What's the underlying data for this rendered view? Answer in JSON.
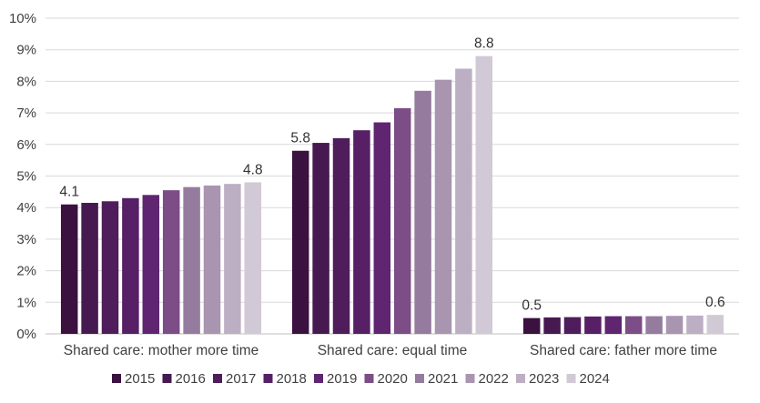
{
  "chart_data": {
    "type": "bar",
    "title": "",
    "xlabel": "",
    "ylabel": "",
    "categories": [
      "Shared care: mother more time",
      "Shared care: equal time",
      "Shared care: father more time"
    ],
    "ylim": [
      0,
      10
    ],
    "yticks": [
      0,
      1,
      2,
      3,
      4,
      5,
      6,
      7,
      8,
      9,
      10
    ],
    "ytick_labels": [
      "0%",
      "1%",
      "2%",
      "3%",
      "4%",
      "5%",
      "6%",
      "7%",
      "8%",
      "9%",
      "10%"
    ],
    "grid": true,
    "legend_position": "bottom",
    "series": [
      {
        "name": "2015",
        "color": "#3b1140",
        "values": [
          4.1,
          5.8,
          0.5
        ]
      },
      {
        "name": "2016",
        "color": "#461a50",
        "values": [
          4.15,
          6.05,
          0.52
        ]
      },
      {
        "name": "2017",
        "color": "#4f1d5b",
        "values": [
          4.2,
          6.2,
          0.53
        ]
      },
      {
        "name": "2018",
        "color": "#561f66",
        "values": [
          4.3,
          6.45,
          0.55
        ]
      },
      {
        "name": "2019",
        "color": "#5f2571",
        "values": [
          4.4,
          6.7,
          0.56
        ]
      },
      {
        "name": "2020",
        "color": "#7c4d86",
        "values": [
          4.55,
          7.15,
          0.56
        ]
      },
      {
        "name": "2021",
        "color": "#957c9e",
        "values": [
          4.65,
          7.7,
          0.56
        ]
      },
      {
        "name": "2022",
        "color": "#aa95b0",
        "values": [
          4.7,
          8.05,
          0.57
        ]
      },
      {
        "name": "2023",
        "color": "#bdafc3",
        "values": [
          4.75,
          8.4,
          0.58
        ]
      },
      {
        "name": "2024",
        "color": "#d2c9d6",
        "values": [
          4.8,
          8.8,
          0.6
        ]
      }
    ],
    "data_labels": [
      {
        "series": 0,
        "category": 0,
        "text": "4.1"
      },
      {
        "series": 9,
        "category": 0,
        "text": "4.8"
      },
      {
        "series": 0,
        "category": 1,
        "text": "5.8"
      },
      {
        "series": 9,
        "category": 1,
        "text": "8.8"
      },
      {
        "series": 0,
        "category": 2,
        "text": "0.5"
      },
      {
        "series": 9,
        "category": 2,
        "text": "0.6"
      }
    ]
  }
}
